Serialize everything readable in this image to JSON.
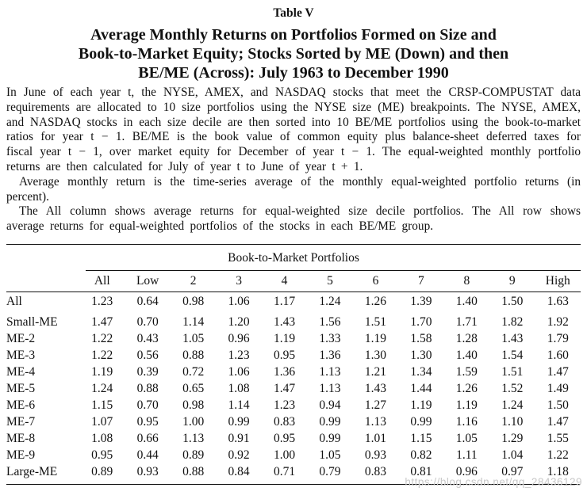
{
  "page": {
    "background": "#ffffff",
    "text_color": "#111111",
    "rule_color": "#111111"
  },
  "header": {
    "table_label": "Table V",
    "title_lines": [
      "Average Monthly Returns on Portfolios Formed on Size and",
      "Book-to-Market Equity; Stocks Sorted by ME (Down) and then",
      "BE/ME (Across): July 1963 to December 1990"
    ]
  },
  "caption": {
    "p1": "In June of each year t, the NYSE, AMEX, and NASDAQ stocks that meet the CRSP-COMPUSTAT data requirements are allocated to 10 size portfolios using the NYSE size (ME) breakpoints. The NYSE, AMEX, and NASDAQ stocks in each size decile are then sorted into 10 BE/ME portfolios using the book-to-market ratios for year t − 1. BE/ME is the book value of common equity plus balance-sheet deferred taxes for fiscal year t − 1, over market equity for December of year t − 1. The equal-weighted monthly portfolio returns are then calculated for July of year t to June of year t + 1.",
    "p2": "Average monthly return is the time-series average of the monthly equal-weighted portfolio returns (in percent).",
    "p3": "The All column shows average returns for equal-weighted size decile portfolios. The All row shows average returns for equal-weighted portfolios of the stocks in each BE/ME group."
  },
  "table": {
    "group_header": "Book-to-Market Portfolios",
    "col_headers": [
      "All",
      "Low",
      "2",
      "3",
      "4",
      "5",
      "6",
      "7",
      "8",
      "9",
      "High"
    ],
    "rows": [
      {
        "label": "All",
        "values": [
          "1.23",
          "0.64",
          "0.98",
          "1.06",
          "1.17",
          "1.24",
          "1.26",
          "1.39",
          "1.40",
          "1.50",
          "1.63"
        ]
      },
      {
        "label": "Small-ME",
        "values": [
          "1.47",
          "0.70",
          "1.14",
          "1.20",
          "1.43",
          "1.56",
          "1.51",
          "1.70",
          "1.71",
          "1.82",
          "1.92"
        ]
      },
      {
        "label": "ME-2",
        "values": [
          "1.22",
          "0.43",
          "1.05",
          "0.96",
          "1.19",
          "1.33",
          "1.19",
          "1.58",
          "1.28",
          "1.43",
          "1.79"
        ]
      },
      {
        "label": "ME-3",
        "values": [
          "1.22",
          "0.56",
          "0.88",
          "1.23",
          "0.95",
          "1.36",
          "1.30",
          "1.30",
          "1.40",
          "1.54",
          "1.60"
        ]
      },
      {
        "label": "ME-4",
        "values": [
          "1.19",
          "0.39",
          "0.72",
          "1.06",
          "1.36",
          "1.13",
          "1.21",
          "1.34",
          "1.59",
          "1.51",
          "1.47"
        ]
      },
      {
        "label": "ME-5",
        "values": [
          "1.24",
          "0.88",
          "0.65",
          "1.08",
          "1.47",
          "1.13",
          "1.43",
          "1.44",
          "1.26",
          "1.52",
          "1.49"
        ]
      },
      {
        "label": "ME-6",
        "values": [
          "1.15",
          "0.70",
          "0.98",
          "1.14",
          "1.23",
          "0.94",
          "1.27",
          "1.19",
          "1.19",
          "1.24",
          "1.50"
        ]
      },
      {
        "label": "ME-7",
        "values": [
          "1.07",
          "0.95",
          "1.00",
          "0.99",
          "0.83",
          "0.99",
          "1.13",
          "0.99",
          "1.16",
          "1.10",
          "1.47"
        ]
      },
      {
        "label": "ME-8",
        "values": [
          "1.08",
          "0.66",
          "1.13",
          "0.91",
          "0.95",
          "0.99",
          "1.01",
          "1.15",
          "1.05",
          "1.29",
          "1.55"
        ]
      },
      {
        "label": "ME-9",
        "values": [
          "0.95",
          "0.44",
          "0.89",
          "0.92",
          "1.00",
          "1.05",
          "0.93",
          "0.82",
          "1.11",
          "1.04",
          "1.22"
        ]
      },
      {
        "label": "Large-ME",
        "values": [
          "0.89",
          "0.93",
          "0.88",
          "0.84",
          "0.71",
          "0.79",
          "0.83",
          "0.81",
          "0.96",
          "0.97",
          "1.18"
        ]
      }
    ]
  },
  "watermark": {
    "text": "https://blog.csdn.net/qq_28436129",
    "color": "#c9c9c9"
  }
}
